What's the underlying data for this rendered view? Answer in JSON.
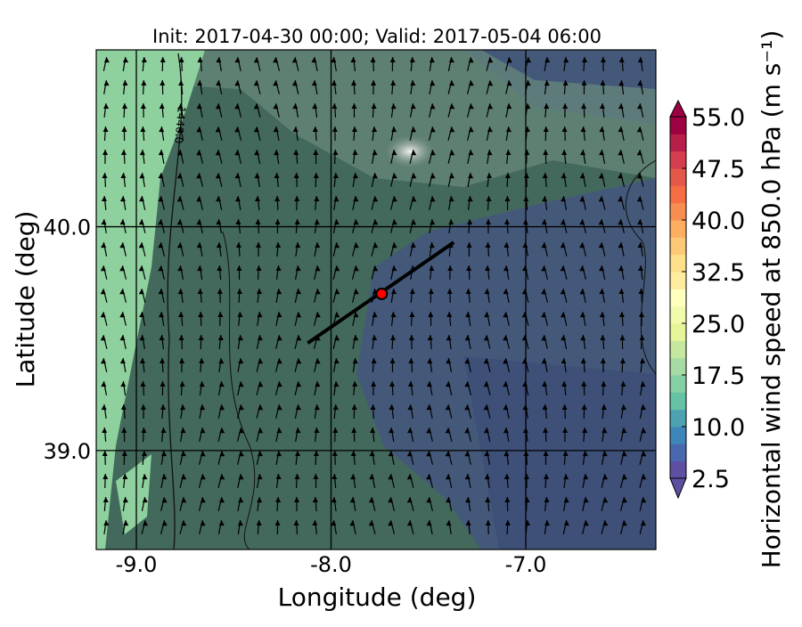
{
  "chart_data": {
    "type": "map",
    "title": "Init: 2017-04-30 00:00; Valid: 2017-05-04 06:00",
    "xlabel": "Longitude (deg)",
    "ylabel": "Latitude (deg)",
    "xlim": [
      -9.206,
      -6.332
    ],
    "ylim": [
      38.558,
      40.79
    ],
    "xticks": [
      {
        "value": -9,
        "label": "-9.0"
      },
      {
        "value": -8,
        "label": "-8.0"
      },
      {
        "value": -7,
        "label": "-7.0"
      }
    ],
    "yticks": [
      {
        "value": 40,
        "label": "40.0"
      },
      {
        "value": 39,
        "label": "39.0"
      }
    ],
    "grid": true,
    "contour_label": "1440.0",
    "section": {
      "start": [
        -8.12,
        39.48
      ],
      "end": [
        -7.37,
        39.93
      ],
      "color": "#000000"
    },
    "point": {
      "lon": -7.74,
      "lat": 39.7,
      "color": "#ff0000"
    },
    "colorbar": {
      "label": "Horizontal wind speed at 850.0 hPa (m s⁻¹)",
      "lim": [
        2.5,
        55
      ],
      "ticks": [
        2.5,
        {
          "value": 10,
          "label": "10.0"
        },
        17.5,
        {
          "value": 25,
          "label": "25.0"
        },
        32.5,
        {
          "value": 40,
          "label": "40.0"
        },
        47.5,
        {
          "value": 55,
          "label": "55.0"
        }
      ],
      "colors": [
        "#5e4fa2",
        "#4a68ad",
        "#3e85b9",
        "#4ca2b1",
        "#66c2a5",
        "#85cfa4",
        "#a6dba4",
        "#c6e89e",
        "#e6f598",
        "#f2faac",
        "#ffffbf",
        "#feec9f",
        "#fee08b",
        "#fdc877",
        "#fdae61",
        "#f88d52",
        "#f46d43",
        "#e55749",
        "#d53e4f",
        "#b71f4a",
        "#9e0142"
      ]
    }
  }
}
